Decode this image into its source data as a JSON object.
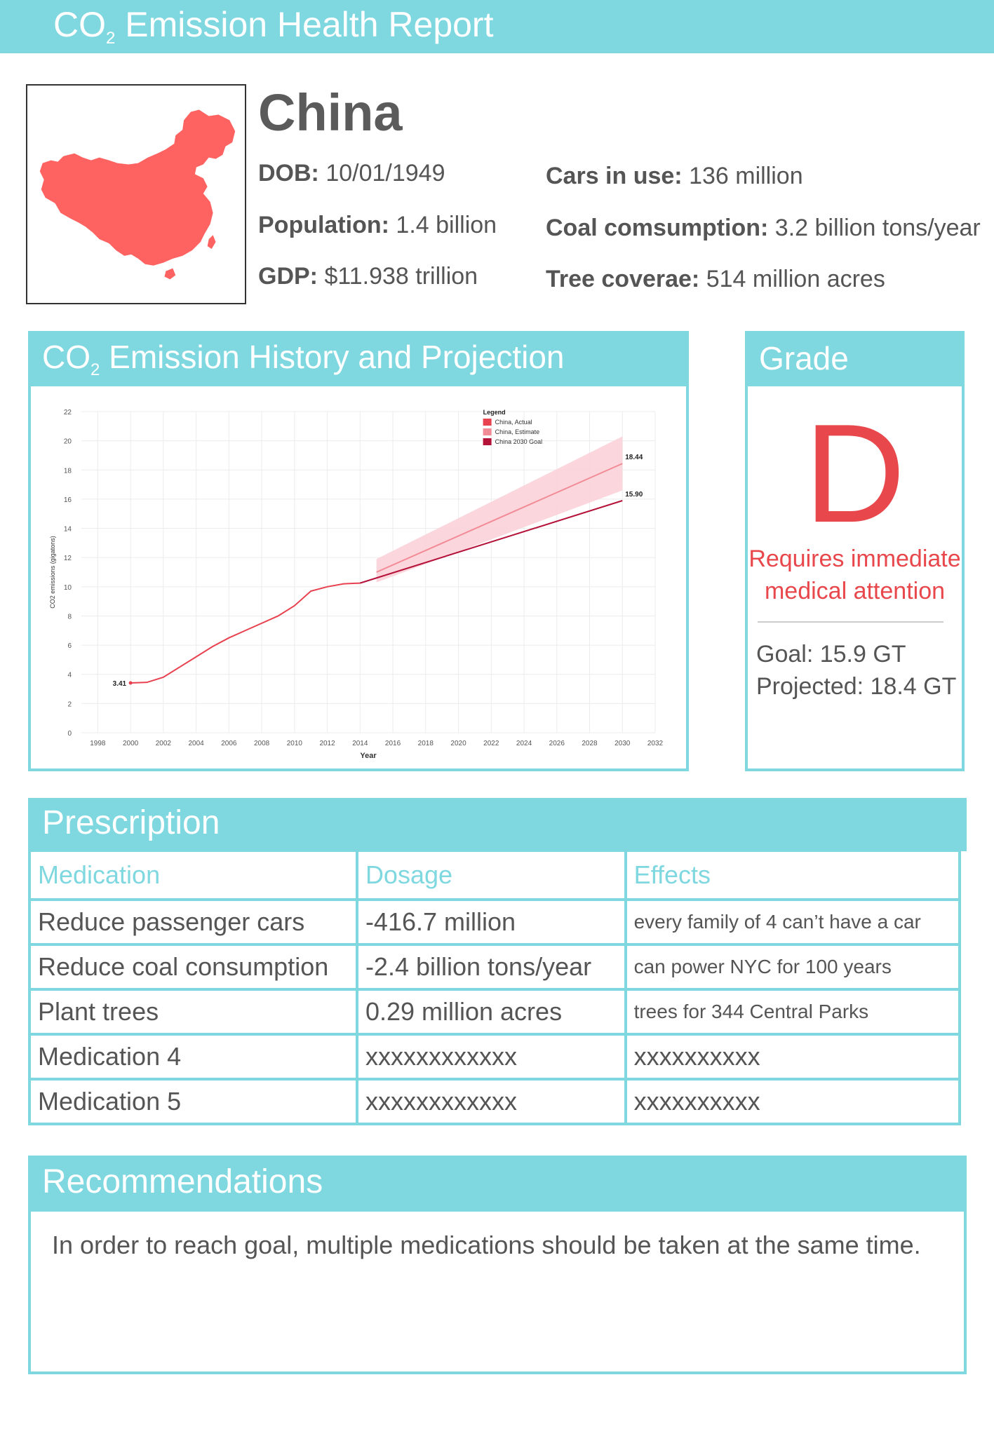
{
  "header": {
    "title_main": "CO",
    "title_sub": "2",
    "title_rest": " Emission Health Report"
  },
  "country": {
    "name": "China",
    "map_icon": "china-map-icon",
    "stats": [
      {
        "label": "DOB:",
        "value": " 10/01/1949"
      },
      {
        "label": "Population:",
        "value": " 1.4 billion"
      },
      {
        "label": "GDP:",
        "value": " $11.938 trillion"
      },
      {
        "label": "Cars in use:",
        "value": " 136 million"
      },
      {
        "label": "Coal comsumption:",
        "value": " 3.2 billion tons/year"
      },
      {
        "label": "Tree coverae:",
        "value": " 514 million acres"
      }
    ]
  },
  "history": {
    "title_main": "CO",
    "title_sub": "2",
    "title_rest": "  Emission History and Projection"
  },
  "chart_data": {
    "type": "line",
    "title": "",
    "xlabel": "Year",
    "ylabel": "CO2 emissions (gigatons)",
    "xlim": [
      1997,
      2032
    ],
    "ylim": [
      0,
      22
    ],
    "x_ticks": [
      1998,
      2000,
      2002,
      2004,
      2006,
      2008,
      2010,
      2012,
      2014,
      2016,
      2018,
      2020,
      2022,
      2024,
      2026,
      2028,
      2030,
      2032
    ],
    "y_ticks": [
      0,
      2,
      4,
      6,
      8,
      10,
      12,
      14,
      16,
      18,
      20,
      22
    ],
    "grid": true,
    "legend_title": "Legend",
    "legend_position": "top-right",
    "series": [
      {
        "name": "China, Actual",
        "color": "#e8414f",
        "x": [
          2000,
          2001,
          2002,
          2003,
          2004,
          2005,
          2006,
          2007,
          2008,
          2009,
          2010,
          2011,
          2012,
          2013,
          2014
        ],
        "y": [
          3.41,
          3.45,
          3.8,
          4.5,
          5.2,
          5.9,
          6.5,
          7.0,
          7.5,
          8.0,
          8.7,
          9.7,
          10.0,
          10.2,
          10.25
        ]
      },
      {
        "name": "China, Estimate",
        "color": "#f28b96",
        "x": [
          2015,
          2030
        ],
        "y": [
          11.0,
          18.44
        ],
        "band_x": [
          2015,
          2030
        ],
        "band_low": [
          10.3,
          16.6
        ],
        "band_high": [
          11.9,
          20.3
        ]
      },
      {
        "name": "China 2030 Goal",
        "color": "#b5123a",
        "x": [
          2014,
          2030
        ],
        "y": [
          10.25,
          15.9
        ]
      }
    ],
    "annotations": [
      {
        "x": 2000,
        "y": 3.41,
        "text": "3.41"
      },
      {
        "x": 2030,
        "y": 18.44,
        "text": "18.44"
      },
      {
        "x": 2030,
        "y": 15.9,
        "text": "15.90"
      }
    ]
  },
  "grade": {
    "title": "Grade",
    "letter": "D",
    "note_line1": "Requires immediate",
    "note_line2": "medical attention",
    "goal": "Goal: 15.9 GT",
    "projected": "Projected: 18.4 GT"
  },
  "prescription": {
    "title": "Prescription",
    "headers": [
      "Medication",
      "Dosage",
      "Effects"
    ],
    "rows": [
      [
        "Reduce passenger cars",
        "-416.7 million",
        "every family of 4 can’t have a car"
      ],
      [
        "Reduce coal consumption",
        "-2.4 billion tons/year",
        "can power NYC for 100 years"
      ],
      [
        "Plant trees",
        "0.29 million acres",
        "trees for 344 Central Parks"
      ],
      [
        "Medication 4",
        "xxxxxxxxxxxx",
        "xxxxxxxxxx"
      ],
      [
        "Medication 5",
        "xxxxxxxxxxxx",
        "xxxxxxxxxx"
      ]
    ]
  },
  "recommendations": {
    "title": "Recommendations",
    "text": "In order to reach goal, multiple medications should be taken at the same time."
  }
}
